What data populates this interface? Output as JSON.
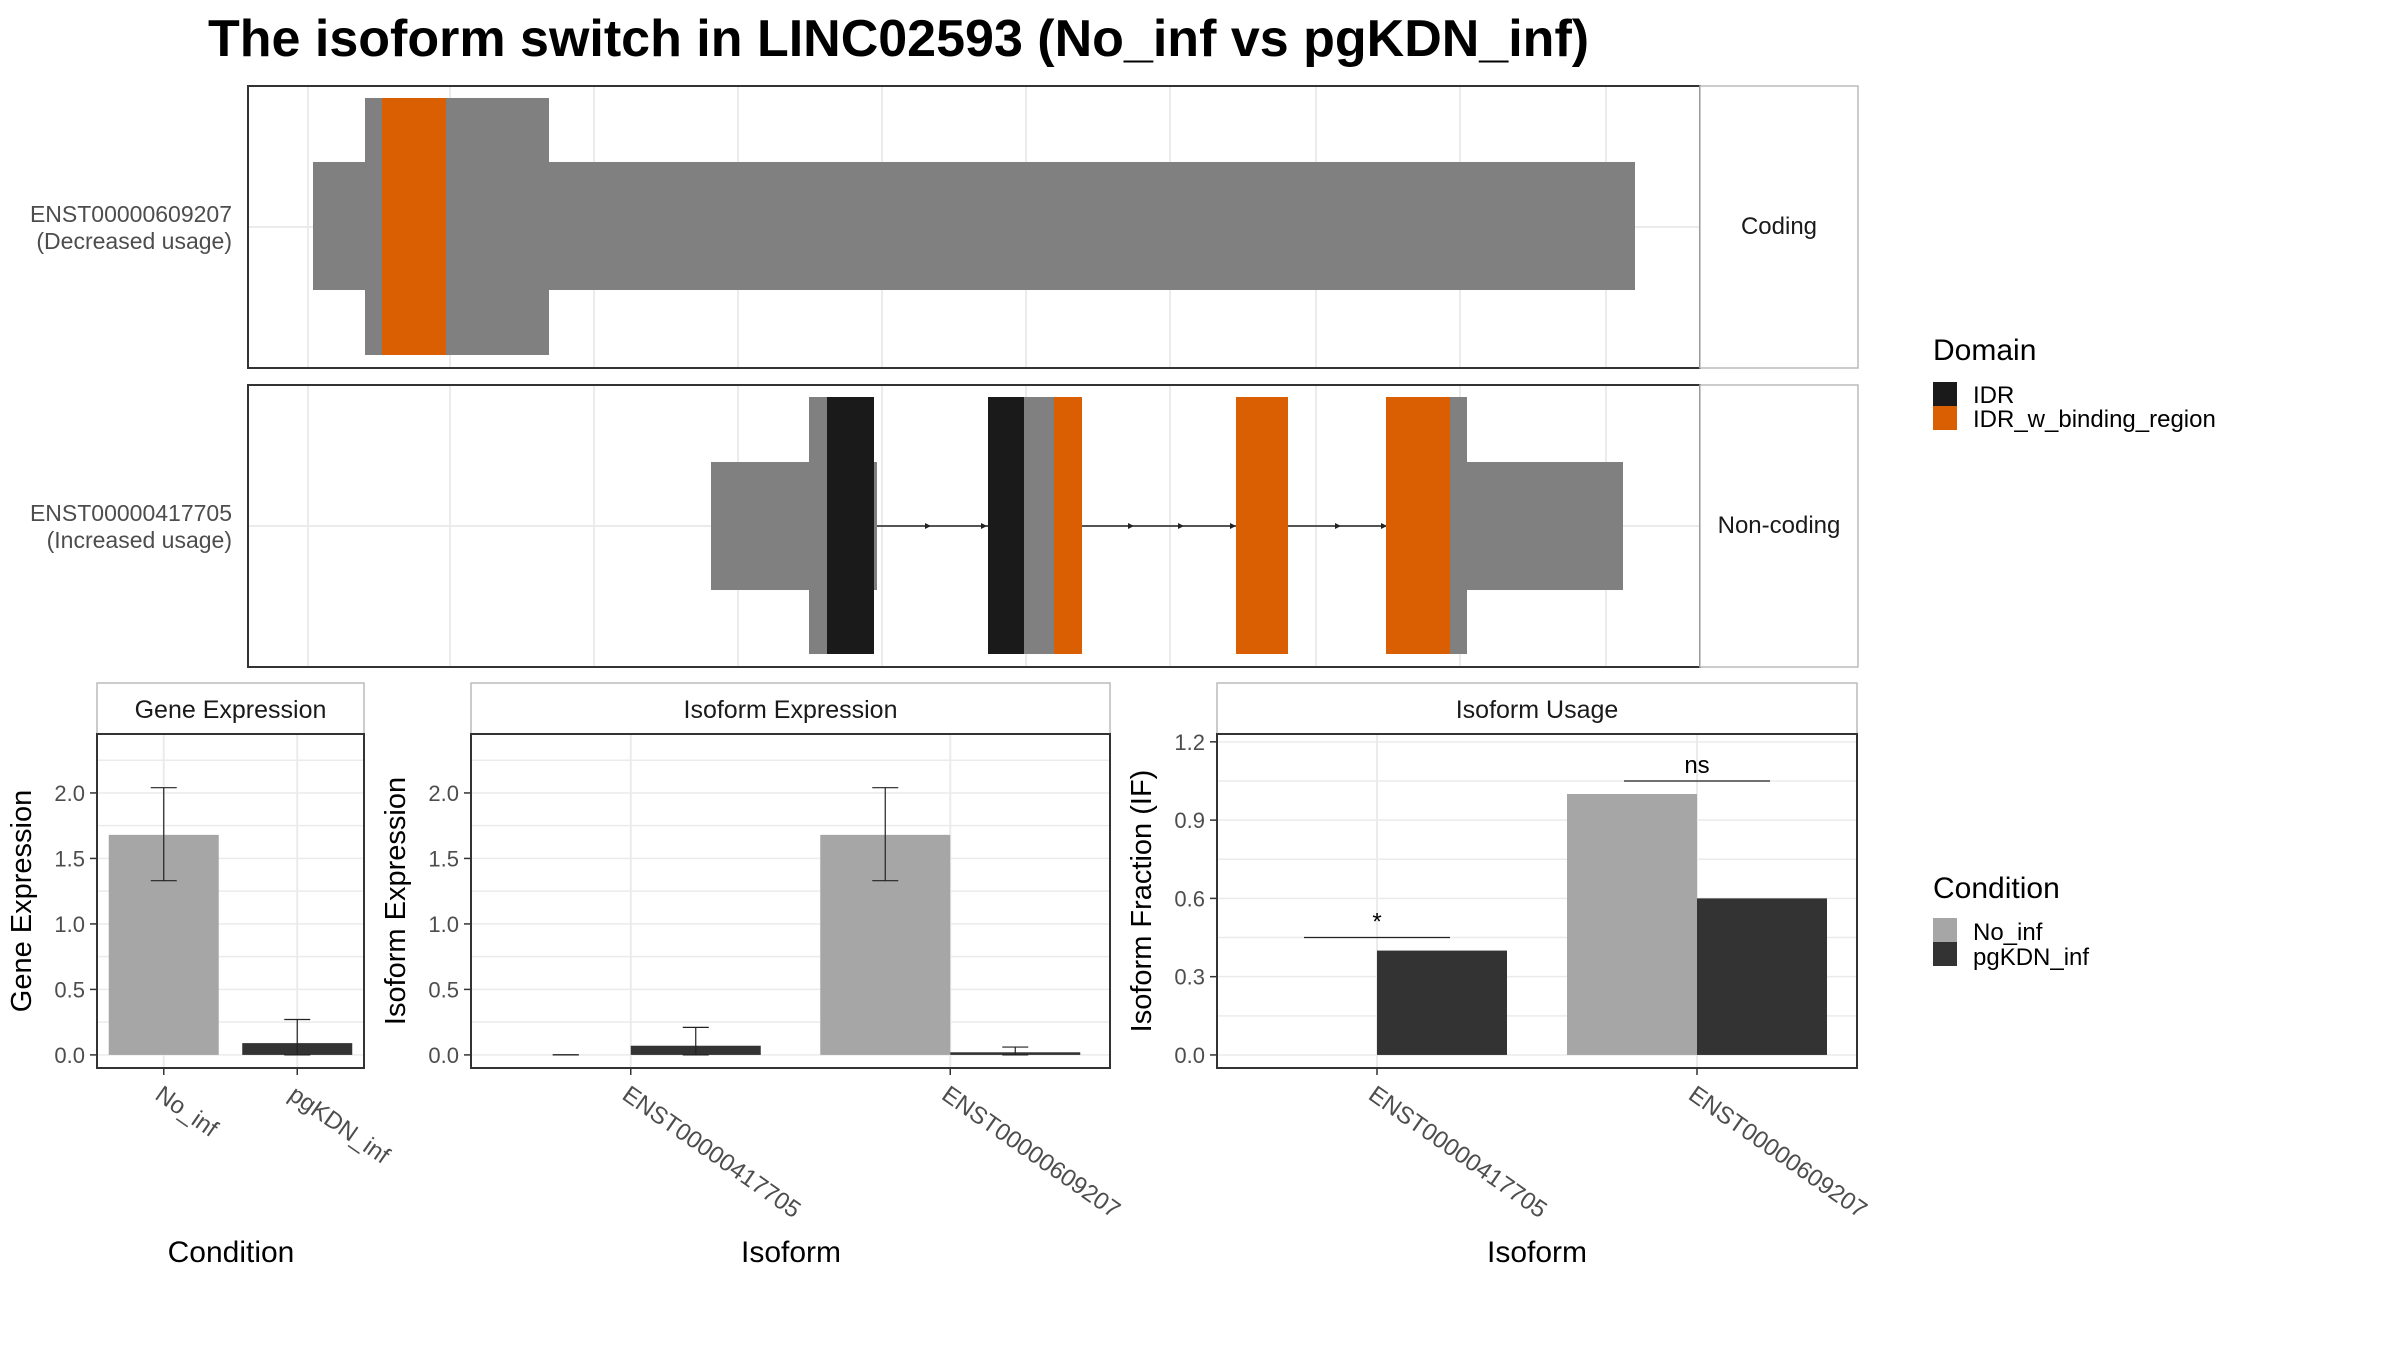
{
  "title": "The isoform switch in LINC02593 (No_inf vs pgKDN_inf)",
  "colors": {
    "exon": "#808080",
    "idr": "#1a1a1a",
    "idr_binding": "#d95f02",
    "no_inf": "#a6a6a6",
    "pgkdn_inf": "#333333",
    "grid": "#ebebeb",
    "frame": "#333333",
    "strip": "#ffffff"
  },
  "structure": {
    "rows": [
      {
        "id": "ENST00000609207",
        "status": "(Decreased usage)",
        "facet": "Coding"
      },
      {
        "id": "ENST00000417705",
        "status": "(Increased usage)",
        "facet": "Non-coding"
      }
    ]
  },
  "legends": {
    "domain": {
      "title": "Domain",
      "items": [
        "IDR",
        "IDR_w_binding_region"
      ]
    },
    "condition": {
      "title": "Condition",
      "items": [
        "No_inf",
        "pgKDN_inf"
      ]
    }
  },
  "chart_data": [
    {
      "type": "bar",
      "panel": "Gene Expression",
      "xlabel": "Condition",
      "ylabel": "Gene Expression",
      "ylim": [
        -0.1,
        2.45
      ],
      "yticks": [
        "0.0",
        "0.5",
        "1.0",
        "1.5",
        "2.0"
      ],
      "categories": [
        "No_inf",
        "pgKDN_inf"
      ],
      "values": [
        1.68,
        0.09
      ],
      "error_low": [
        1.33,
        0.0
      ],
      "error_high": [
        2.04,
        0.27
      ]
    },
    {
      "type": "bar",
      "panel": "Isoform Expression",
      "xlabel": "Isoform",
      "ylabel": "Isoform Expression",
      "ylim": [
        -0.1,
        2.45
      ],
      "yticks": [
        "0.0",
        "0.5",
        "1.0",
        "1.5",
        "2.0"
      ],
      "categories": [
        "ENST00000417705",
        "ENST00000609207"
      ],
      "series": [
        {
          "name": "No_inf",
          "values": [
            0.0,
            1.68
          ],
          "error_low": [
            0.0,
            1.33
          ],
          "error_high": [
            0.0,
            2.04
          ]
        },
        {
          "name": "pgKDN_inf",
          "values": [
            0.07,
            0.02
          ],
          "error_low": [
            0.0,
            0.0
          ],
          "error_high": [
            0.21,
            0.06
          ]
        }
      ]
    },
    {
      "type": "bar",
      "panel": "Isoform Usage",
      "xlabel": "Isoform",
      "ylabel": "Isoform Fraction (IF)",
      "ylim": [
        -0.05,
        1.23
      ],
      "yticks": [
        "0.0",
        "0.3",
        "0.6",
        "0.9",
        "1.2"
      ],
      "categories": [
        "ENST00000417705",
        "ENST00000609207"
      ],
      "series": [
        {
          "name": "No_inf",
          "values": [
            0.0,
            1.0
          ]
        },
        {
          "name": "pgKDN_inf",
          "values": [
            0.4,
            0.6
          ]
        }
      ],
      "significance": [
        "*",
        "ns"
      ]
    }
  ]
}
